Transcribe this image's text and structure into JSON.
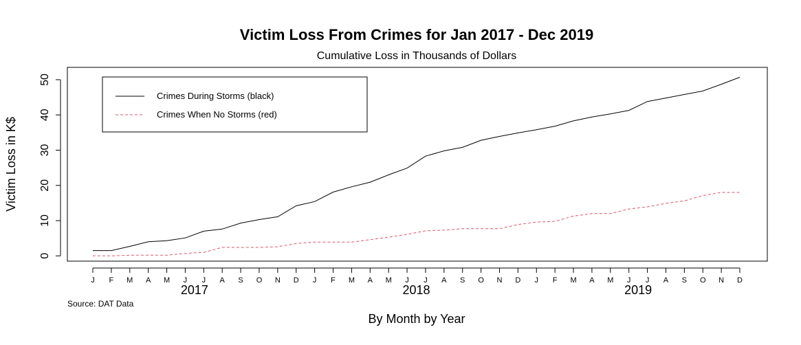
{
  "chart_data": {
    "type": "line",
    "title": "Victim Loss From Crimes for Jan 2017 - Dec 2019",
    "subtitle": "Cumulative Loss in Thousands of Dollars",
    "xlabel": "By Month by Year",
    "ylabel": "Victim Loss in K$",
    "source": "Source: DAT Data",
    "categories": [
      "J",
      "F",
      "M",
      "A",
      "M",
      "J",
      "J",
      "A",
      "S",
      "O",
      "N",
      "D",
      "J",
      "F",
      "M",
      "A",
      "M",
      "J",
      "J",
      "A",
      "S",
      "O",
      "N",
      "D",
      "J",
      "F",
      "M",
      "A",
      "M",
      "J",
      "J",
      "A",
      "S",
      "O",
      "N",
      "D"
    ],
    "years": [
      {
        "label": "2017",
        "start_index": 0
      },
      {
        "label": "2018",
        "start_index": 12
      },
      {
        "label": "2019",
        "start_index": 24
      }
    ],
    "yticks": [
      0,
      10,
      20,
      30,
      40,
      50
    ],
    "ylim": [
      -1.5,
      53.5
    ],
    "grid": false,
    "legend_position": "top-left",
    "series": [
      {
        "name": "Crimes During Storms (black)",
        "color": "#000000",
        "dash": "solid",
        "values": [
          1.5,
          1.5,
          2.7,
          4.0,
          4.3,
          5.1,
          7.0,
          7.6,
          9.3,
          10.3,
          11.1,
          14.2,
          15.4,
          18.1,
          19.6,
          20.9,
          23.0,
          24.9,
          28.3,
          29.8,
          30.8,
          32.8,
          33.9,
          34.9,
          35.8,
          36.8,
          38.3,
          39.4,
          40.3,
          41.3,
          43.8,
          44.8,
          45.8,
          46.8,
          48.7,
          50.7
        ]
      },
      {
        "name": "Crimes When No Storms (red)",
        "color": "#DF536B",
        "dash": "dashed",
        "values": [
          0.0,
          0.0,
          0.2,
          0.2,
          0.2,
          0.7,
          1.0,
          2.4,
          2.4,
          2.4,
          2.6,
          3.5,
          3.9,
          3.9,
          3.9,
          4.6,
          5.3,
          6.1,
          7.1,
          7.3,
          7.7,
          7.7,
          7.7,
          8.9,
          9.6,
          9.8,
          11.3,
          12.0,
          12.0,
          13.3,
          13.9,
          14.9,
          15.6,
          17.1,
          18.0,
          18.0
        ]
      }
    ]
  }
}
